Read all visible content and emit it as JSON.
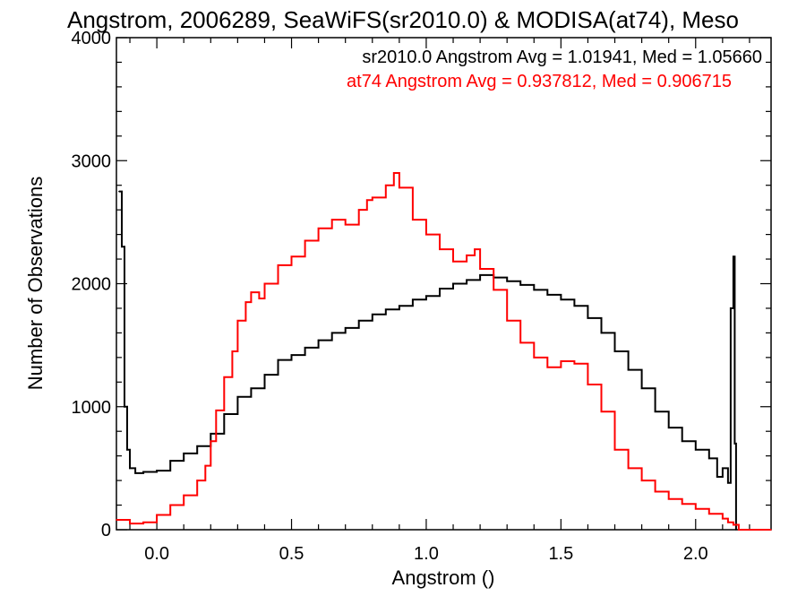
{
  "chart_data": {
    "type": "line",
    "title": "Angstrom, 2006289, SeaWiFS(sr2010.0) & MODISA(at74), Meso",
    "xlabel": "Angstrom ()",
    "ylabel": "Number of Observations",
    "xlim": [
      -0.15,
      2.28
    ],
    "ylim": [
      0,
      4000
    ],
    "x_ticks": [
      "0.0",
      "0.5",
      "1.0",
      "1.5",
      "2.0"
    ],
    "y_ticks": [
      "0",
      "1000",
      "2000",
      "3000",
      "4000"
    ],
    "x_tick_values": [
      0.0,
      0.5,
      1.0,
      1.5,
      2.0
    ],
    "y_tick_values": [
      0,
      1000,
      2000,
      3000,
      4000
    ],
    "grid": false,
    "legend_placement": "top-right",
    "annotations": [
      {
        "text": "sr2010.0 Angstrom Avg = 1.01941, Med = 1.05660",
        "color": "#000000"
      },
      {
        "text": "at74 Angstrom Avg = 0.937812, Med = 0.906715",
        "color": "#ff0000"
      }
    ],
    "series": [
      {
        "color": "#000000",
        "x": [
          -0.14,
          -0.13,
          -0.12,
          -0.11,
          -0.1,
          -0.08,
          -0.05,
          0.0,
          0.05,
          0.1,
          0.15,
          0.2,
          0.25,
          0.3,
          0.35,
          0.4,
          0.45,
          0.5,
          0.55,
          0.6,
          0.65,
          0.7,
          0.75,
          0.8,
          0.85,
          0.9,
          0.95,
          1.0,
          1.05,
          1.1,
          1.15,
          1.2,
          1.25,
          1.3,
          1.35,
          1.4,
          1.45,
          1.5,
          1.55,
          1.6,
          1.65,
          1.7,
          1.75,
          1.8,
          1.85,
          1.9,
          1.95,
          2.0,
          2.05,
          2.08,
          2.1,
          2.12,
          2.13,
          2.14,
          2.145,
          2.15
        ],
        "y": [
          2750,
          2300,
          1000,
          650,
          500,
          460,
          470,
          480,
          560,
          620,
          680,
          780,
          940,
          1080,
          1150,
          1260,
          1380,
          1420,
          1480,
          1540,
          1600,
          1640,
          1700,
          1750,
          1790,
          1820,
          1870,
          1900,
          1960,
          2000,
          2030,
          2070,
          2050,
          2020,
          1990,
          1950,
          1910,
          1870,
          1820,
          1720,
          1600,
          1450,
          1300,
          1150,
          960,
          830,
          720,
          650,
          580,
          430,
          500,
          380,
          1800,
          2220,
          700,
          0
        ]
      },
      {
        "color": "#ff0000",
        "x": [
          -0.15,
          -0.1,
          -0.05,
          0.0,
          0.05,
          0.1,
          0.15,
          0.18,
          0.2,
          0.22,
          0.25,
          0.28,
          0.3,
          0.33,
          0.35,
          0.38,
          0.4,
          0.45,
          0.5,
          0.55,
          0.6,
          0.65,
          0.7,
          0.75,
          0.78,
          0.8,
          0.85,
          0.88,
          0.9,
          0.95,
          1.0,
          1.05,
          1.1,
          1.15,
          1.18,
          1.2,
          1.25,
          1.3,
          1.35,
          1.4,
          1.45,
          1.5,
          1.55,
          1.6,
          1.65,
          1.7,
          1.75,
          1.8,
          1.85,
          1.9,
          1.95,
          2.0,
          2.05,
          2.1,
          2.12,
          2.14,
          2.16,
          2.28
        ],
        "y": [
          80,
          50,
          60,
          120,
          200,
          280,
          400,
          520,
          720,
          970,
          1240,
          1450,
          1700,
          1850,
          1930,
          1880,
          2000,
          2150,
          2220,
          2350,
          2450,
          2520,
          2480,
          2600,
          2680,
          2700,
          2800,
          2900,
          2780,
          2520,
          2400,
          2280,
          2180,
          2230,
          2280,
          2120,
          1950,
          1700,
          1520,
          1400,
          1320,
          1370,
          1350,
          1180,
          960,
          650,
          500,
          400,
          310,
          250,
          210,
          170,
          130,
          90,
          60,
          40,
          0,
          0
        ]
      }
    ]
  }
}
